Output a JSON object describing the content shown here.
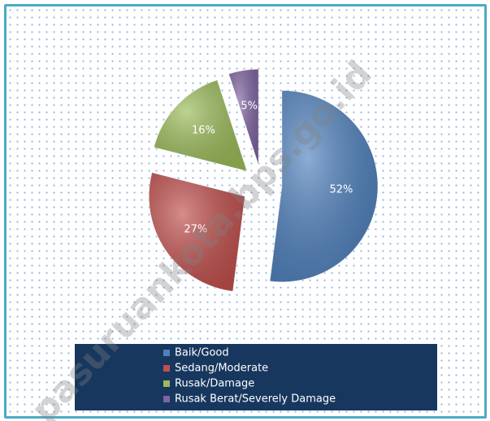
{
  "chart_data": {
    "type": "pie",
    "categories": [
      "Baik/Good",
      "Sedang/Moderate",
      "Rusak/Damage",
      "Rusak Berat/Severely Damage"
    ],
    "values": [
      52,
      27,
      16,
      5
    ],
    "value_labels": [
      "52%",
      "27%",
      "16%",
      "5%"
    ],
    "colors": [
      "#4f81bd",
      "#c0504d",
      "#9bbb59",
      "#8064a2"
    ],
    "legend": "bottom",
    "watermark": "pasuruankota.bps.go.id"
  }
}
